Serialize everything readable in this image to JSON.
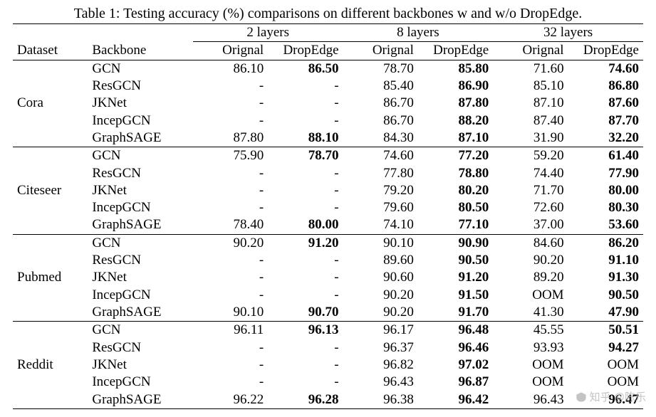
{
  "caption": "Table 1: Testing accuracy (%) comparisons on different backbones w and w/o DropEdge.",
  "header": {
    "dataset": "Dataset",
    "backbone": "Backbone",
    "groups": [
      "2 layers",
      "8 layers",
      "32 layers"
    ],
    "sub": [
      "Orignal",
      "DropEdge"
    ]
  },
  "datasets": [
    {
      "name": "Cora",
      "rows": [
        {
          "backbone": "GCN",
          "l2o": "86.10",
          "l2d": "86.50",
          "l8o": "78.70",
          "l8d": "85.80",
          "l32o": "71.60",
          "l32d": "74.60",
          "bold": {
            "l2d": 1,
            "l8d": 1,
            "l32d": 1
          }
        },
        {
          "backbone": "ResGCN",
          "l2o": "-",
          "l2d": "-",
          "l8o": "85.40",
          "l8d": "86.90",
          "l32o": "85.10",
          "l32d": "86.80",
          "bold": {
            "l8d": 1,
            "l32d": 1
          }
        },
        {
          "backbone": "JKNet",
          "l2o": "-",
          "l2d": "-",
          "l8o": "86.70",
          "l8d": "87.80",
          "l32o": "87.10",
          "l32d": "87.60",
          "bold": {
            "l8d": 1,
            "l32d": 1
          }
        },
        {
          "backbone": "IncepGCN",
          "l2o": "-",
          "l2d": "-",
          "l8o": "86.70",
          "l8d": "88.20",
          "l32o": "87.40",
          "l32d": "87.70",
          "bold": {
            "l8d": 1,
            "l32d": 1
          }
        },
        {
          "backbone": "GraphSAGE",
          "l2o": "87.80",
          "l2d": "88.10",
          "l8o": "84.30",
          "l8d": "87.10",
          "l32o": "31.90",
          "l32d": "32.20",
          "bold": {
            "l2d": 1,
            "l8d": 1,
            "l32d": 1
          }
        }
      ]
    },
    {
      "name": "Citeseer",
      "rows": [
        {
          "backbone": "GCN",
          "l2o": "75.90",
          "l2d": "78.70",
          "l8o": "74.60",
          "l8d": "77.20",
          "l32o": "59.20",
          "l32d": "61.40",
          "bold": {
            "l2d": 1,
            "l8d": 1,
            "l32d": 1
          }
        },
        {
          "backbone": "ResGCN",
          "l2o": "-",
          "l2d": "-",
          "l8o": "77.80",
          "l8d": "78.80",
          "l32o": "74.40",
          "l32d": "77.90",
          "bold": {
            "l8d": 1,
            "l32d": 1
          }
        },
        {
          "backbone": "JKNet",
          "l2o": "-",
          "l2d": "-",
          "l8o": "79.20",
          "l8d": "80.20",
          "l32o": "71.70",
          "l32d": "80.00",
          "bold": {
            "l8d": 1,
            "l32d": 1
          }
        },
        {
          "backbone": "IncepGCN",
          "l2o": "-",
          "l2d": "-",
          "l8o": "79.60",
          "l8d": "80.50",
          "l32o": "72.60",
          "l32d": "80.30",
          "bold": {
            "l8d": 1,
            "l32d": 1
          }
        },
        {
          "backbone": "GraphSAGE",
          "l2o": "78.40",
          "l2d": "80.00",
          "l8o": "74.10",
          "l8d": "77.10",
          "l32o": "37.00",
          "l32d": "53.60",
          "bold": {
            "l2d": 1,
            "l8d": 1,
            "l32d": 1
          }
        }
      ]
    },
    {
      "name": "Pubmed",
      "rows": [
        {
          "backbone": "GCN",
          "l2o": "90.20",
          "l2d": "91.20",
          "l8o": "90.10",
          "l8d": "90.90",
          "l32o": "84.60",
          "l32d": "86.20",
          "bold": {
            "l2d": 1,
            "l8d": 1,
            "l32d": 1
          }
        },
        {
          "backbone": "ResGCN",
          "l2o": "-",
          "l2d": "-",
          "l8o": "89.60",
          "l8d": "90.50",
          "l32o": "90.20",
          "l32d": "91.10",
          "bold": {
            "l8d": 1,
            "l32d": 1
          }
        },
        {
          "backbone": "JKNet",
          "l2o": "-",
          "l2d": "-",
          "l8o": "90.60",
          "l8d": "91.20",
          "l32o": "89.20",
          "l32d": "91.30",
          "bold": {
            "l8d": 1,
            "l32d": 1
          }
        },
        {
          "backbone": "IncepGCN",
          "l2o": "-",
          "l2d": "-",
          "l8o": "90.20",
          "l8d": "91.50",
          "l32o": "OOM",
          "l32d": "90.50",
          "bold": {
            "l8d": 1,
            "l32d": 1
          }
        },
        {
          "backbone": "GraphSAGE",
          "l2o": "90.10",
          "l2d": "90.70",
          "l8o": "90.20",
          "l8d": "91.70",
          "l32o": "41.30",
          "l32d": "47.90",
          "bold": {
            "l2d": 1,
            "l8d": 1,
            "l32d": 1
          }
        }
      ]
    },
    {
      "name": "Reddit",
      "rows": [
        {
          "backbone": "GCN",
          "l2o": "96.11",
          "l2d": "96.13",
          "l8o": "96.17",
          "l8d": "96.48",
          "l32o": "45.55",
          "l32d": "50.51",
          "bold": {
            "l2d": 1,
            "l8d": 1,
            "l32d": 1
          }
        },
        {
          "backbone": "ResGCN",
          "l2o": "-",
          "l2d": "-",
          "l8o": "96.37",
          "l8d": "96.46",
          "l32o": "93.93",
          "l32d": "94.27",
          "bold": {
            "l8d": 1,
            "l32d": 1
          }
        },
        {
          "backbone": "JKNet",
          "l2o": "-",
          "l2d": "-",
          "l8o": "96.82",
          "l8d": "97.02",
          "l32o": "OOM",
          "l32d": "OOM",
          "bold": {
            "l8d": 1
          }
        },
        {
          "backbone": "IncepGCN",
          "l2o": "-",
          "l2d": "-",
          "l8o": "96.43",
          "l8d": "96.87",
          "l32o": "OOM",
          "l32d": "OOM",
          "bold": {
            "l8d": 1
          }
        },
        {
          "backbone": "GraphSAGE",
          "l2o": "96.22",
          "l2d": "96.28",
          "l8o": "96.38",
          "l8d": "96.42",
          "l32o": "96.43",
          "l32d": "96.47",
          "bold": {
            "l2d": 1,
            "l8d": 1,
            "l32d": 1
          }
        }
      ]
    }
  ],
  "columns_order": [
    "l2o",
    "l2d",
    "l8o",
    "l8d",
    "l32o",
    "l32d"
  ],
  "watermark": "知乎 @陈乐"
}
